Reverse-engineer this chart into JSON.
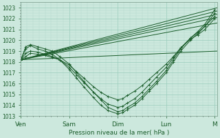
{
  "xlabel": "Pression niveau de la mer( hPa )",
  "x_ticks_labels": [
    "Ven",
    "Sam",
    "Dim",
    "Lun",
    "M"
  ],
  "x_ticks_pos": [
    0,
    1,
    2,
    3,
    4
  ],
  "ylim": [
    1013,
    1023.5
  ],
  "yticks": [
    1013,
    1014,
    1015,
    1016,
    1017,
    1018,
    1019,
    1020,
    1021,
    1022,
    1023
  ],
  "bg_color": "#cce8dd",
  "grid_color_major": "#99ccbb",
  "grid_color_minor": "#b3d9cc",
  "line_color": "#1a5c2a",
  "straight_lines": [
    {
      "x": [
        0,
        4.05
      ],
      "y": [
        1018.2,
        1023.0
      ]
    },
    {
      "x": [
        0,
        4.05
      ],
      "y": [
        1018.2,
        1022.7
      ]
    },
    {
      "x": [
        0,
        4.05
      ],
      "y": [
        1018.2,
        1022.4
      ]
    },
    {
      "x": [
        0,
        4.05
      ],
      "y": [
        1018.2,
        1022.1
      ]
    },
    {
      "x": [
        0,
        4.05
      ],
      "y": [
        1018.2,
        1021.6
      ]
    },
    {
      "x": [
        0,
        4.05
      ],
      "y": [
        1018.2,
        1019.0
      ]
    }
  ],
  "curved_lines": [
    {
      "x": [
        0,
        0.1,
        0.2,
        0.35,
        0.5,
        0.65,
        0.8,
        1.0,
        1.15,
        1.3,
        1.5,
        1.65,
        1.8,
        2.0,
        2.1,
        2.2,
        2.35,
        2.5,
        2.65,
        2.8,
        3.0,
        3.15,
        3.3,
        3.5,
        3.65,
        3.8,
        4.0
      ],
      "y": [
        1018.2,
        1019.4,
        1019.6,
        1019.4,
        1019.2,
        1019.0,
        1018.5,
        1017.8,
        1017.0,
        1016.2,
        1015.2,
        1014.5,
        1013.8,
        1013.4,
        1013.5,
        1013.8,
        1014.2,
        1014.8,
        1015.5,
        1016.2,
        1017.2,
        1018.2,
        1019.2,
        1020.2,
        1020.8,
        1021.5,
        1022.8
      ]
    },
    {
      "x": [
        0,
        0.1,
        0.2,
        0.35,
        0.5,
        0.65,
        0.8,
        1.0,
        1.15,
        1.3,
        1.5,
        1.65,
        1.8,
        2.0,
        2.1,
        2.2,
        2.35,
        2.5,
        2.65,
        2.8,
        3.0,
        3.15,
        3.3,
        3.5,
        3.65,
        3.8,
        4.0
      ],
      "y": [
        1018.2,
        1019.2,
        1019.5,
        1019.2,
        1019.0,
        1018.7,
        1018.2,
        1017.3,
        1016.5,
        1015.7,
        1014.7,
        1014.0,
        1013.5,
        1013.2,
        1013.3,
        1013.6,
        1014.0,
        1014.6,
        1015.3,
        1016.0,
        1017.0,
        1018.0,
        1019.0,
        1020.0,
        1020.6,
        1021.3,
        1022.5
      ]
    },
    {
      "x": [
        0,
        0.1,
        0.2,
        0.35,
        0.5,
        0.65,
        0.8,
        1.0,
        1.15,
        1.3,
        1.5,
        1.65,
        1.8,
        2.0,
        2.1,
        2.2,
        2.35,
        2.5,
        2.65,
        2.8,
        3.0,
        3.15,
        3.3,
        3.5,
        3.65,
        3.8,
        4.0
      ],
      "y": [
        1018.2,
        1018.8,
        1019.0,
        1018.9,
        1018.7,
        1018.5,
        1018.2,
        1017.5,
        1016.8,
        1016.1,
        1015.2,
        1014.6,
        1014.1,
        1013.8,
        1013.9,
        1014.2,
        1014.6,
        1015.2,
        1015.9,
        1016.6,
        1017.5,
        1018.4,
        1019.3,
        1020.2,
        1020.7,
        1021.3,
        1022.2
      ]
    },
    {
      "x": [
        0,
        0.1,
        0.2,
        0.35,
        0.5,
        0.65,
        0.8,
        1.0,
        1.15,
        1.3,
        1.5,
        1.65,
        1.8,
        2.0,
        2.1,
        2.2,
        2.35,
        2.5,
        2.65,
        2.8,
        3.0,
        3.15,
        3.3,
        3.5,
        3.65,
        3.8,
        4.0
      ],
      "y": [
        1018.2,
        1018.5,
        1018.8,
        1018.7,
        1018.6,
        1018.4,
        1018.2,
        1017.7,
        1017.1,
        1016.5,
        1015.7,
        1015.2,
        1014.8,
        1014.5,
        1014.6,
        1014.9,
        1015.3,
        1015.8,
        1016.4,
        1017.0,
        1017.8,
        1018.5,
        1019.3,
        1020.1,
        1020.5,
        1021.0,
        1022.0
      ]
    }
  ]
}
